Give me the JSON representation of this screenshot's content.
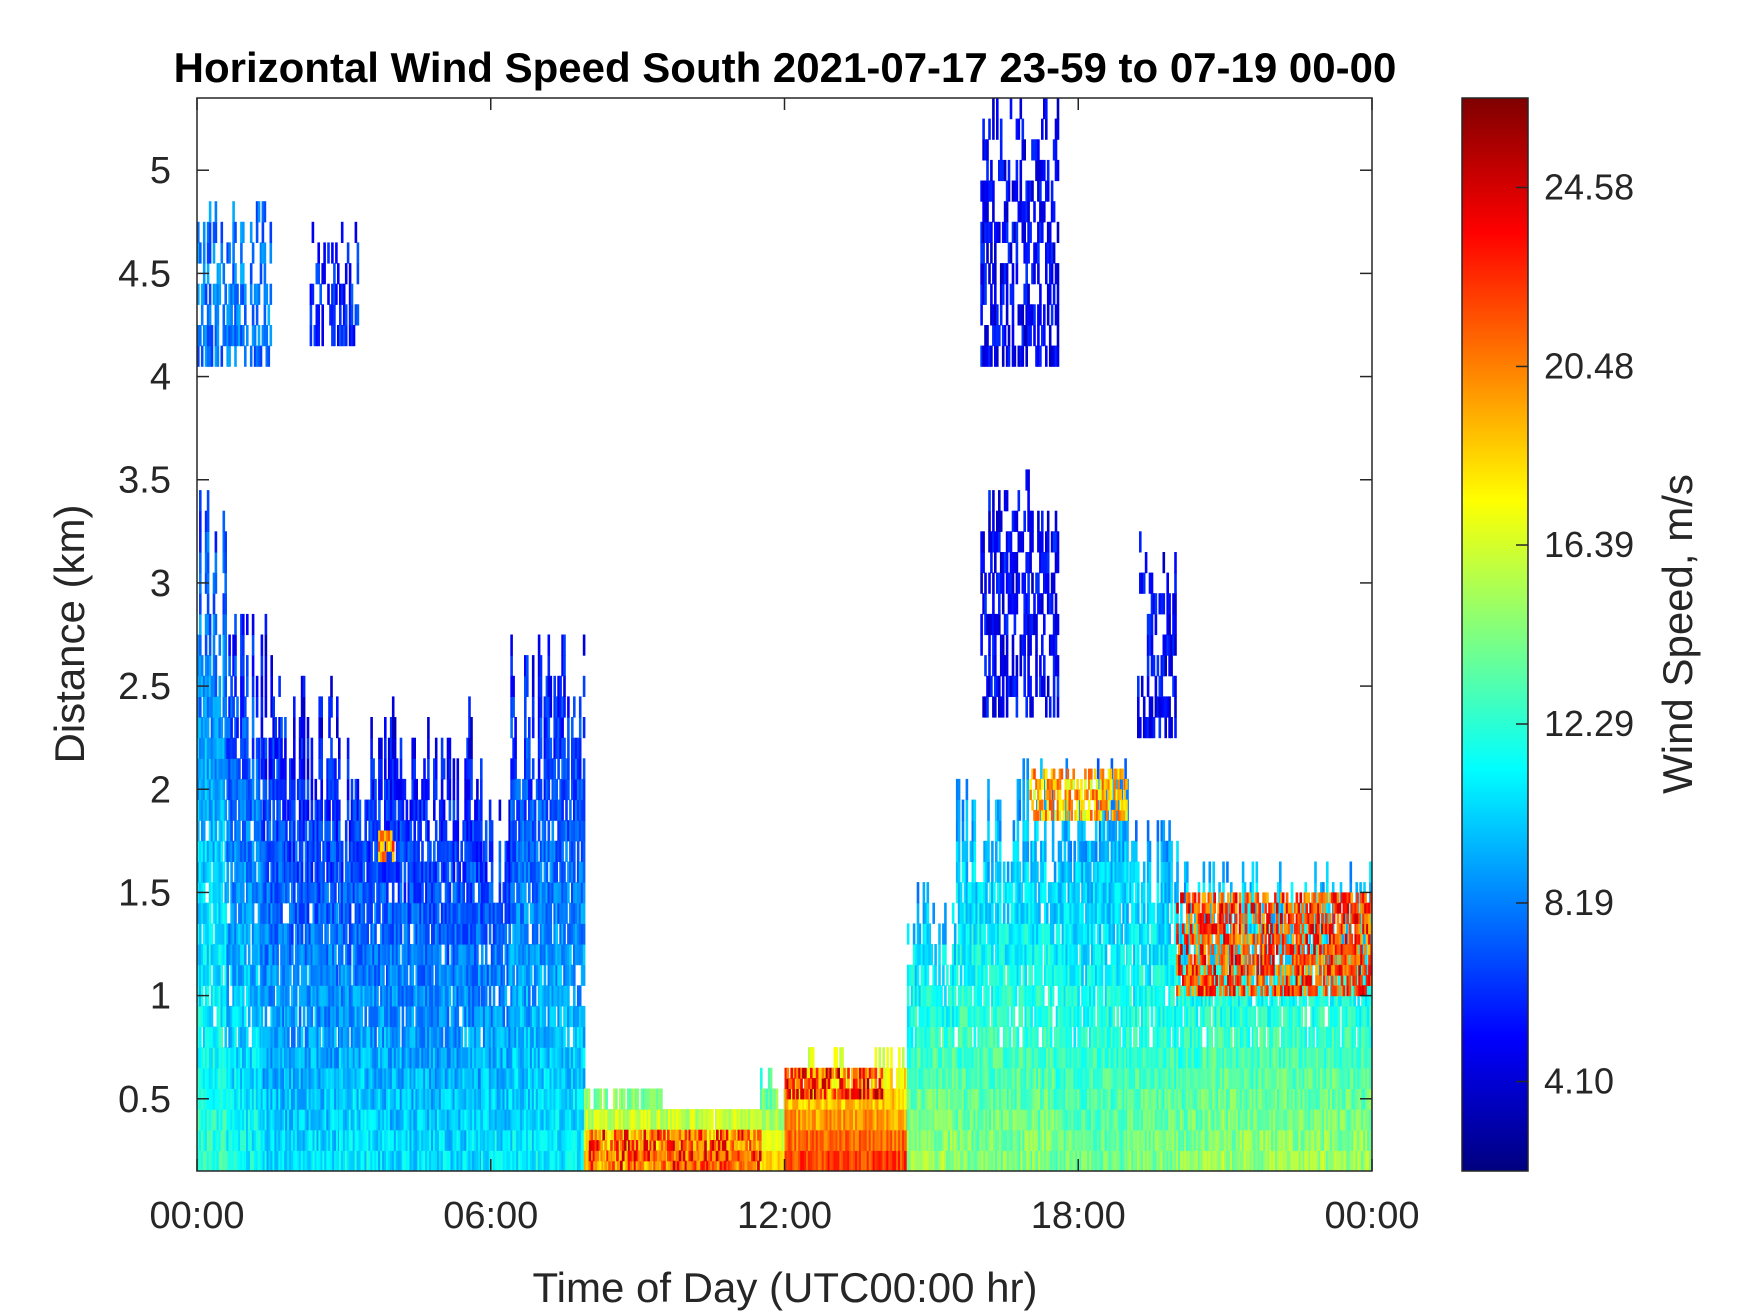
{
  "chart_data": {
    "type": "heatmap",
    "title": "Horizontal Wind Speed South 2021-07-17 23-59 to 07-19 00-00",
    "xlabel": "Time of Day (UTC00:00 hr)",
    "ylabel": "Distance (km)",
    "x_ticks": [
      "00:00",
      "06:00",
      "12:00",
      "18:00",
      "00:00"
    ],
    "x_range_hours": [
      0,
      24
    ],
    "y_ticks": [
      "0.5",
      "1",
      "1.5",
      "2",
      "2.5",
      "3",
      "3.5",
      "4",
      "4.5",
      "5"
    ],
    "ylim": [
      0.15,
      5.35
    ],
    "colorbar": {
      "label": "Wind Speed, m/s",
      "colormap": "jet",
      "range": [
        2.05,
        26.63
      ],
      "ticks": [
        "4.10",
        "8.19",
        "12.29",
        "16.39",
        "20.48",
        "24.58"
      ]
    },
    "regions": [
      {
        "x": [
          0.0,
          0.6
        ],
        "ymax": 3.5,
        "value": 8.5
      },
      {
        "x": [
          0.6,
          1.3
        ],
        "ymax": 2.9,
        "value": 7.5
      },
      {
        "x": [
          1.3,
          1.8
        ],
        "ymax": 2.8,
        "value": 6.5
      },
      {
        "x": [
          1.8,
          2.9
        ],
        "ymax": 2.5,
        "value": 6.5
      },
      {
        "x": [
          2.9,
          3.5
        ],
        "ymax": 2.2,
        "value": 7.0
      },
      {
        "x": [
          3.5,
          5.8
        ],
        "ymax": 2.4,
        "value": 6.5
      },
      {
        "x": [
          5.8,
          6.4
        ],
        "ymax": 2.0,
        "value": 7.0
      },
      {
        "x": [
          6.4,
          7.9
        ],
        "ymax": 2.8,
        "value": 7.0
      },
      {
        "x": [
          7.9,
          9.5
        ],
        "ymax": 0.55,
        "value": 15.0
      },
      {
        "x": [
          9.5,
          11.5
        ],
        "ymax": 0.45,
        "value": 16.0
      },
      {
        "x": [
          11.5,
          12.0
        ],
        "ymax": 0.6,
        "value": 14.0
      },
      {
        "x": [
          12.0,
          14.5
        ],
        "ymax": 0.7,
        "value": 18.0
      },
      {
        "x": [
          14.5,
          15.5
        ],
        "ymax": 1.5,
        "value": 11.0
      },
      {
        "x": [
          15.5,
          17.5
        ],
        "ymax": 2.1,
        "value": 10.5
      },
      {
        "x": [
          17.5,
          19.0
        ],
        "ymax": 2.15,
        "value": 10.0
      },
      {
        "x": [
          19.0,
          20.5
        ],
        "ymax": 1.85,
        "value": 10.5
      },
      {
        "x": [
          20.5,
          24.0
        ],
        "ymax": 1.65,
        "value": 11.0
      },
      {
        "x": [
          0.0,
          1.5
        ],
        "ymin": 4.05,
        "ymax": 4.8,
        "value": 8.0
      },
      {
        "x": [
          2.3,
          3.3
        ],
        "ymin": 4.15,
        "ymax": 4.7,
        "value": 6.0
      },
      {
        "x": [
          16.0,
          17.6
        ],
        "ymin": 4.05,
        "ymax": 5.35,
        "value": 5.0
      },
      {
        "x": [
          16.0,
          17.6
        ],
        "ymin": 2.35,
        "ymax": 3.55,
        "value": 5.0
      },
      {
        "x": [
          19.2,
          20.0
        ],
        "ymin": 2.25,
        "ymax": 3.2,
        "value": 5.0
      }
    ],
    "hotspots": [
      {
        "x": [
          8.0,
          11.5
        ],
        "y": [
          0.15,
          0.35
        ],
        "value": 22.0
      },
      {
        "x": [
          12.0,
          14.0
        ],
        "y": [
          0.5,
          0.65
        ],
        "value": 23.0
      },
      {
        "x": [
          20.0,
          24.0
        ],
        "y": [
          1.0,
          1.5
        ],
        "value": 22.0
      },
      {
        "x": [
          3.7,
          4.0
        ],
        "y": [
          1.65,
          1.8
        ],
        "value": 20.0
      },
      {
        "x": [
          17.0,
          19.0
        ],
        "y": [
          1.85,
          2.1
        ],
        "value": 19.0
      }
    ]
  }
}
